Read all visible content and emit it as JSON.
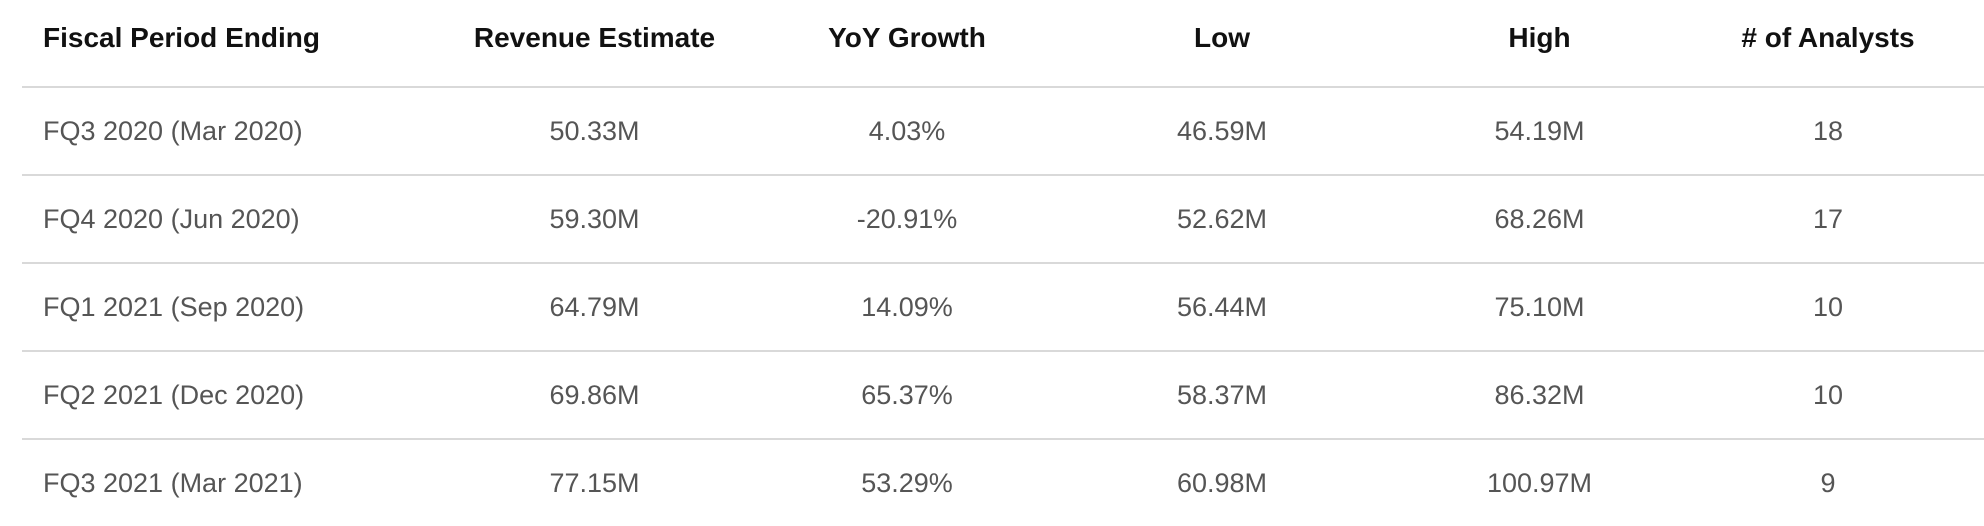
{
  "table": {
    "headers": [
      "Fiscal Period Ending",
      "Revenue Estimate",
      "YoY Growth",
      "Low",
      "High",
      "# of Analysts"
    ],
    "rows": [
      [
        "FQ3 2020 (Mar 2020)",
        "50.33M",
        "4.03%",
        "46.59M",
        "54.19M",
        "18"
      ],
      [
        "FQ4 2020 (Jun 2020)",
        "59.30M",
        "-20.91%",
        "52.62M",
        "68.26M",
        "17"
      ],
      [
        "FQ1 2021 (Sep 2020)",
        "64.79M",
        "14.09%",
        "56.44M",
        "75.10M",
        "10"
      ],
      [
        "FQ2 2021 (Dec 2020)",
        "69.86M",
        "65.37%",
        "58.37M",
        "86.32M",
        "10"
      ],
      [
        "FQ3 2021 (Mar 2021)",
        "77.15M",
        "53.29%",
        "60.98M",
        "100.97M",
        "9"
      ]
    ]
  }
}
